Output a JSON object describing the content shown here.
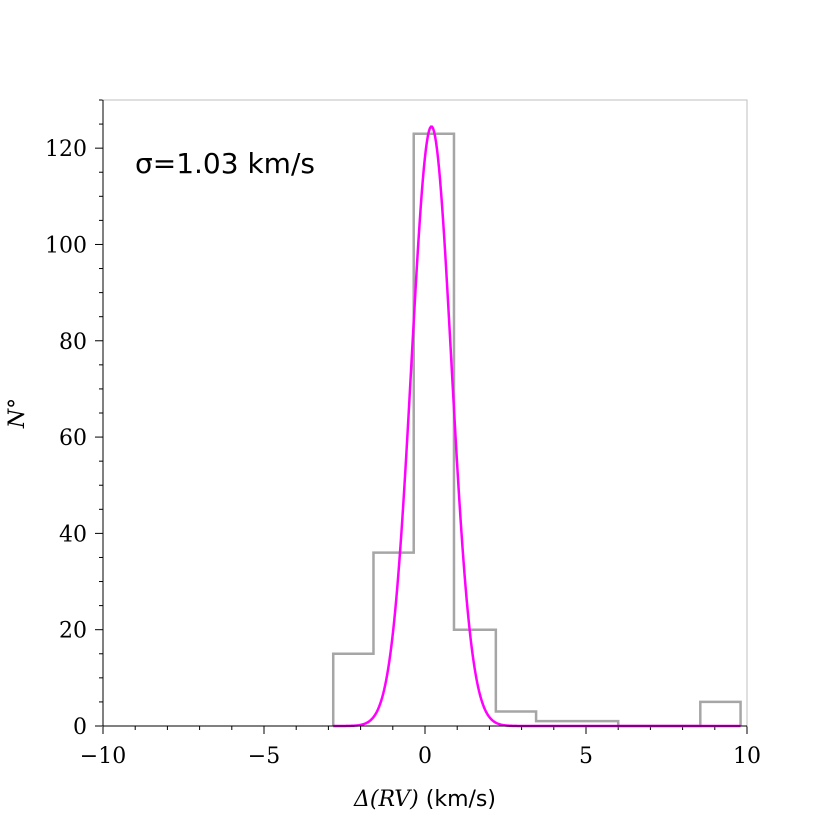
{
  "chart_data": {
    "type": "histogram",
    "title": "",
    "xlabel_math": "Δ(RV)",
    "xlabel_units": " (km/s)",
    "ylabel": "N°",
    "xlim": [
      -10,
      10
    ],
    "ylim": [
      0,
      130
    ],
    "x_ticks": [
      -10,
      -5,
      0,
      5,
      10
    ],
    "x_tick_labels": [
      "−10",
      "−5",
      "0",
      "5",
      "10"
    ],
    "y_ticks": [
      0,
      20,
      40,
      60,
      80,
      100,
      120
    ],
    "y_tick_labels": [
      "0",
      "20",
      "40",
      "60",
      "80",
      "100",
      "120"
    ],
    "annotation": "σ=1.03 km/s",
    "histogram": {
      "color": "#a6a6a6",
      "bin_edges": [
        -2.85,
        -1.6,
        -0.35,
        0.9,
        2.2,
        3.45,
        4.7,
        6.0,
        7.3,
        8.55,
        9.8
      ],
      "counts": [
        15,
        36,
        123,
        20,
        3,
        1,
        1,
        0,
        0,
        5
      ]
    },
    "fit": {
      "type": "gaussian",
      "color": "#ff00ff",
      "amplitude": 124.5,
      "mean": 0.2,
      "sigma": 0.62,
      "x_range": [
        -2.85,
        9.8
      ]
    },
    "grid": false,
    "legend": "none"
  }
}
